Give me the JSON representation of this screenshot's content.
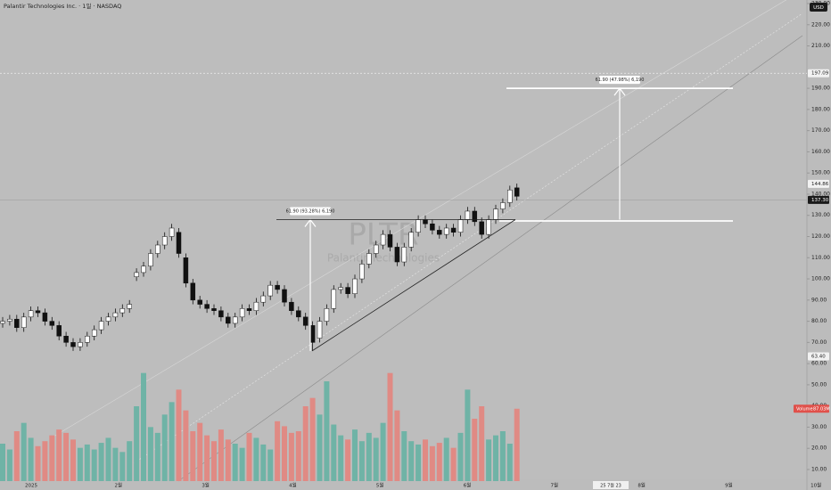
{
  "chart_data": {
    "type": "candlestick",
    "title": "Palantir Technologies Inc. · 1일 · NASDAQ",
    "watermark": "PLTR",
    "watermark_sub": "Palantir Technologies",
    "currency": "USD",
    "x_labels": [
      "2025",
      "2월",
      "3월",
      "4월",
      "5월",
      "6월",
      "7월",
      "8월",
      "9월",
      "10월"
    ],
    "crosshair_label": "25 7월 23",
    "open": [
      79,
      80,
      81,
      77,
      82,
      85,
      84,
      80,
      78,
      73,
      70,
      68,
      70,
      73,
      76,
      80,
      82,
      84,
      86,
      101,
      103,
      106,
      112,
      116,
      120,
      122,
      110,
      98,
      90,
      88,
      86,
      85,
      82,
      79,
      82,
      86,
      85,
      89,
      92,
      97,
      95,
      89,
      85,
      82,
      78,
      72,
      80,
      86,
      95,
      96,
      93,
      100,
      107,
      112,
      116,
      121,
      115,
      108,
      115,
      122,
      128,
      126,
      123,
      121,
      124,
      122,
      128,
      132,
      127,
      121,
      128,
      133,
      136,
      143
    ],
    "high": [
      82,
      83,
      83,
      84,
      87,
      87,
      86,
      82,
      80,
      75,
      72,
      72,
      75,
      78,
      82,
      84,
      86,
      88,
      90,
      105,
      108,
      114,
      118,
      122,
      126,
      124,
      112,
      100,
      92,
      90,
      88,
      87,
      84,
      84,
      88,
      88,
      91,
      94,
      99,
      99,
      97,
      91,
      87,
      84,
      80,
      82,
      88,
      97,
      98,
      98,
      102,
      109,
      114,
      118,
      123,
      123,
      117,
      117,
      124,
      130,
      130,
      128,
      125,
      126,
      126,
      130,
      134,
      134,
      129,
      130,
      135,
      138,
      144,
      145
    ],
    "low": [
      77,
      78,
      75,
      75,
      80,
      82,
      78,
      76,
      71,
      68,
      66,
      66,
      68,
      71,
      74,
      78,
      80,
      82,
      84,
      99,
      101,
      104,
      110,
      114,
      118,
      110,
      96,
      88,
      86,
      84,
      83,
      80,
      77,
      77,
      80,
      83,
      83,
      87,
      90,
      93,
      87,
      83,
      80,
      76,
      66,
      70,
      78,
      84,
      93,
      91,
      91,
      98,
      105,
      110,
      114,
      113,
      106,
      106,
      113,
      120,
      124,
      121,
      119,
      119,
      120,
      120,
      126,
      125,
      119,
      119,
      126,
      131,
      134,
      137
    ],
    "close": [
      80,
      81,
      77,
      82,
      85,
      84,
      80,
      78,
      73,
      70,
      68,
      70,
      73,
      76,
      80,
      82,
      84,
      86,
      88,
      103,
      106,
      112,
      116,
      120,
      124,
      112,
      98,
      90,
      88,
      86,
      85,
      82,
      79,
      82,
      86,
      85,
      89,
      92,
      97,
      95,
      89,
      85,
      82,
      78,
      70,
      80,
      86,
      95,
      96,
      93,
      100,
      107,
      112,
      116,
      121,
      115,
      108,
      115,
      122,
      128,
      126,
      123,
      121,
      124,
      122,
      128,
      132,
      127,
      121,
      128,
      133,
      136,
      142,
      139
    ],
    "volume": {
      "name": "Volume",
      "values": [
        45,
        38,
        60,
        70,
        52,
        42,
        48,
        55,
        62,
        58,
        50,
        40,
        44,
        38,
        46,
        52,
        40,
        35,
        48,
        90,
        130,
        65,
        58,
        80,
        95,
        110,
        85,
        60,
        70,
        55,
        48,
        62,
        50,
        45,
        40,
        58,
        52,
        44,
        38,
        72,
        66,
        58,
        60,
        90,
        100,
        80,
        120,
        68,
        55,
        50,
        62,
        48,
        58,
        52,
        70,
        130,
        85,
        60,
        48,
        44,
        50,
        42,
        46,
        52,
        40,
        58,
        110,
        75,
        90,
        50,
        55,
        60,
        45,
        87.03
      ],
      "value_label": "87.03M",
      "ylim": [
        0,
        150
      ],
      "up_color": "#6fb3a6",
      "down_color": "#e08a84"
    },
    "up_color": "#ffffff",
    "down_color": "#111111",
    "ylim": [
      10,
      230
    ],
    "yticks": [
      {
        "value": 10,
        "label": "10.00"
      },
      {
        "value": 20,
        "label": "20.00"
      },
      {
        "value": 30,
        "label": "30.00"
      },
      {
        "value": 40,
        "label": "40.00"
      },
      {
        "value": 50,
        "label": "50.00"
      },
      {
        "value": 60,
        "label": "60.00"
      },
      {
        "value": 70,
        "label": "70.00"
      },
      {
        "value": 80,
        "label": "80.00"
      },
      {
        "value": 90,
        "label": "90.00"
      },
      {
        "value": 100,
        "label": "100.00"
      },
      {
        "value": 110,
        "label": "110.00"
      },
      {
        "value": 120,
        "label": "120.00"
      },
      {
        "value": 130,
        "label": "130.00"
      },
      {
        "value": 140,
        "label": "140.00"
      },
      {
        "value": 150,
        "label": "150.00"
      },
      {
        "value": 160,
        "label": "160.00"
      },
      {
        "value": 170,
        "label": "170.00"
      },
      {
        "value": 180,
        "label": "180.00"
      },
      {
        "value": 190,
        "label": "190.00"
      },
      {
        "value": 210,
        "label": "210.00"
      },
      {
        "value": 220,
        "label": "220.00"
      },
      {
        "value": 230,
        "label": "230.00"
      }
    ],
    "price_tags": [
      {
        "value": 197.09,
        "label": "197.09",
        "dark": false
      },
      {
        "value": 144.86,
        "label": "144.86",
        "dark": false
      },
      {
        "value": 137.3,
        "label": "137.30",
        "dark": true
      },
      {
        "value": 63.4,
        "label": "63.40",
        "dark": false
      }
    ],
    "measures": [
      {
        "from": 66,
        "to": 128,
        "label": "61.90 (93.28%) 6,190"
      },
      {
        "from": 128,
        "to": 190,
        "label": "61.90 (47.98%) 6,190"
      }
    ]
  }
}
